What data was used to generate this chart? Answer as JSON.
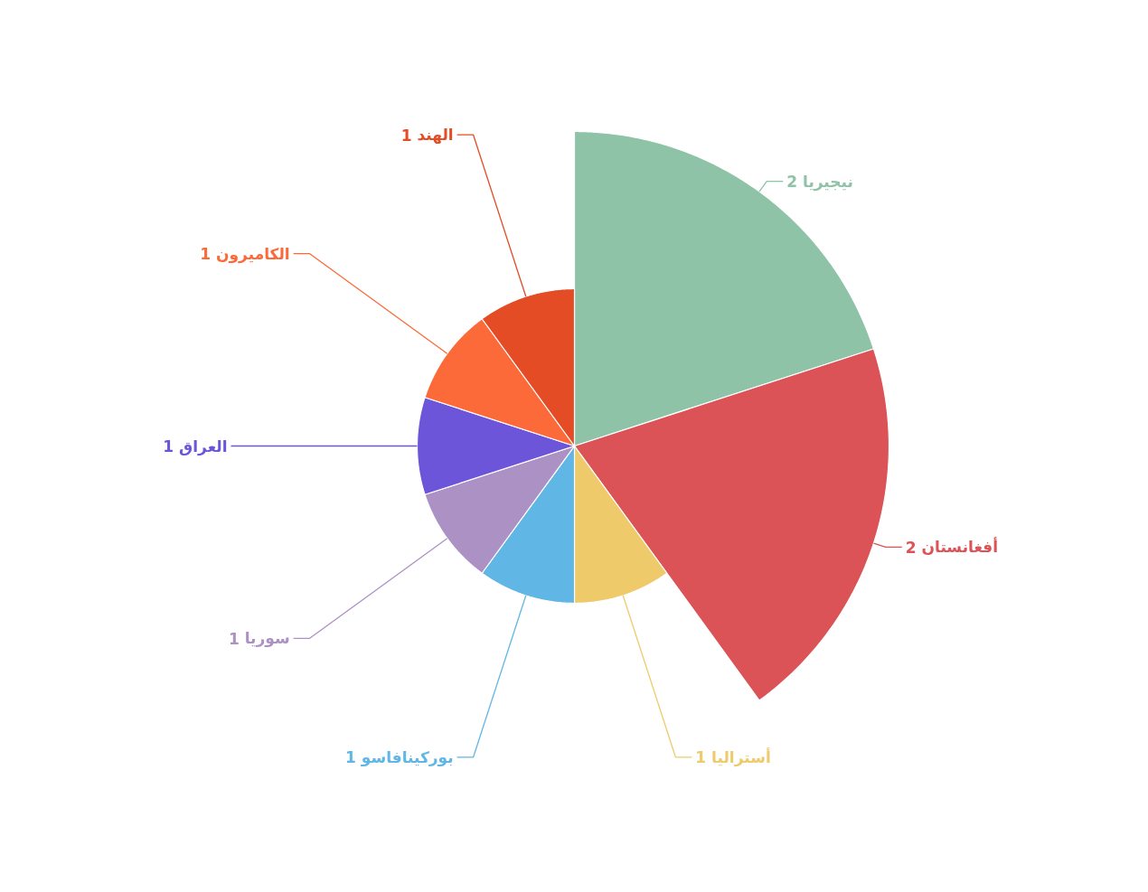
{
  "chart_data": {
    "type": "other",
    "categories": [
      "نيجيريا",
      "أفغانستان",
      "أستراليا",
      "بوركينافاسو",
      "سوريا",
      "العراق",
      "الكاميرون",
      "الهند"
    ],
    "values": [
      2,
      2,
      1,
      1,
      1,
      1,
      1,
      1
    ],
    "colors": [
      "#8fc3a7",
      "#db5356",
      "#eeca6a",
      "#60b6e4",
      "#ac91c5",
      "#6d55d9",
      "#fd6a39",
      "#e34c24"
    ],
    "data_labels": true
  }
}
